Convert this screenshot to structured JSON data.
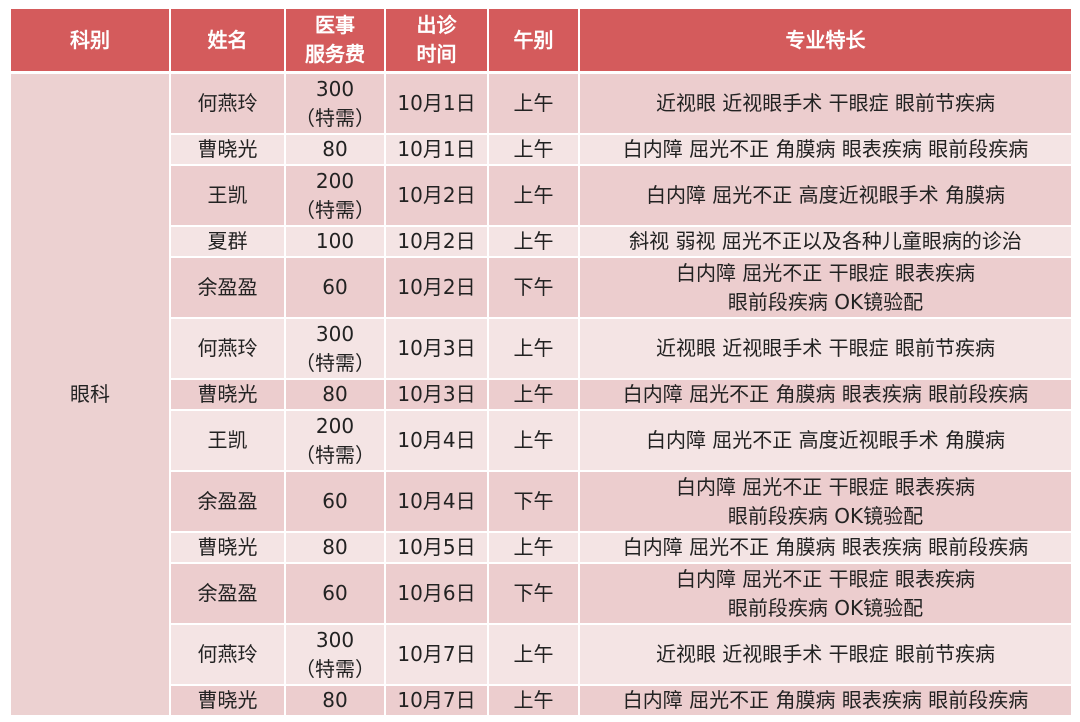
{
  "headers": [
    "科别",
    "姓名",
    "医事\n服务费",
    "出诊\n时间",
    "午别",
    "专业特长"
  ],
  "header_lines": {
    "fee": [
      "医事",
      "服务费"
    ],
    "time": [
      "出诊",
      "时间"
    ]
  },
  "department": "眼科",
  "colors": {
    "header": "#d45b5c",
    "row_dark": "#eccdce",
    "row_light": "#f4e4e4",
    "dept_cell": "#ecd1d1"
  },
  "rows": [
    {
      "name": "何燕玲",
      "fee": [
        "300",
        "（特需）"
      ],
      "date": "10月1日",
      "session": "上午",
      "specialty": [
        "近视眼 近视眼手术 干眼症 眼前节疾病"
      ]
    },
    {
      "name": "曹晓光",
      "fee": [
        "80"
      ],
      "date": "10月1日",
      "session": "上午",
      "specialty": [
        "白内障 屈光不正 角膜病 眼表疾病 眼前段疾病"
      ]
    },
    {
      "name": "王凯",
      "fee": [
        "200",
        "（特需）"
      ],
      "date": "10月2日",
      "session": "上午",
      "specialty": [
        "白内障 屈光不正 高度近视眼手术 角膜病"
      ]
    },
    {
      "name": "夏群",
      "fee": [
        "100"
      ],
      "date": "10月2日",
      "session": "上午",
      "specialty": [
        "斜视 弱视 屈光不正以及各种儿童眼病的诊治"
      ]
    },
    {
      "name": "余盈盈",
      "fee": [
        "60"
      ],
      "date": "10月2日",
      "session": "下午",
      "specialty": [
        "白内障 屈光不正 干眼症 眼表疾病",
        "眼前段疾病 OK镜验配"
      ]
    },
    {
      "name": "何燕玲",
      "fee": [
        "300",
        "（特需）"
      ],
      "date": "10月3日",
      "session": "上午",
      "specialty": [
        "近视眼 近视眼手术 干眼症 眼前节疾病"
      ]
    },
    {
      "name": "曹晓光",
      "fee": [
        "80"
      ],
      "date": "10月3日",
      "session": "上午",
      "specialty": [
        "白内障 屈光不正 角膜病 眼表疾病 眼前段疾病"
      ]
    },
    {
      "name": "王凯",
      "fee": [
        "200",
        "（特需）"
      ],
      "date": "10月4日",
      "session": "上午",
      "specialty": [
        "白内障 屈光不正 高度近视眼手术 角膜病"
      ]
    },
    {
      "name": "余盈盈",
      "fee": [
        "60"
      ],
      "date": "10月4日",
      "session": "下午",
      "specialty": [
        "白内障 屈光不正 干眼症 眼表疾病",
        "眼前段疾病 OK镜验配"
      ]
    },
    {
      "name": "曹晓光",
      "fee": [
        "80"
      ],
      "date": "10月5日",
      "session": "上午",
      "specialty": [
        "白内障 屈光不正 角膜病 眼表疾病 眼前段疾病"
      ]
    },
    {
      "name": "余盈盈",
      "fee": [
        "60"
      ],
      "date": "10月6日",
      "session": "下午",
      "specialty": [
        "白内障 屈光不正 干眼症 眼表疾病",
        "眼前段疾病 OK镜验配"
      ]
    },
    {
      "name": "何燕玲",
      "fee": [
        "300",
        "（特需）"
      ],
      "date": "10月7日",
      "session": "上午",
      "specialty": [
        "近视眼 近视眼手术 干眼症 眼前节疾病"
      ]
    },
    {
      "name": "曹晓光",
      "fee": [
        "80"
      ],
      "date": "10月7日",
      "session": "上午",
      "specialty": [
        "白内障 屈光不正 角膜病 眼表疾病 眼前段疾病"
      ]
    }
  ]
}
